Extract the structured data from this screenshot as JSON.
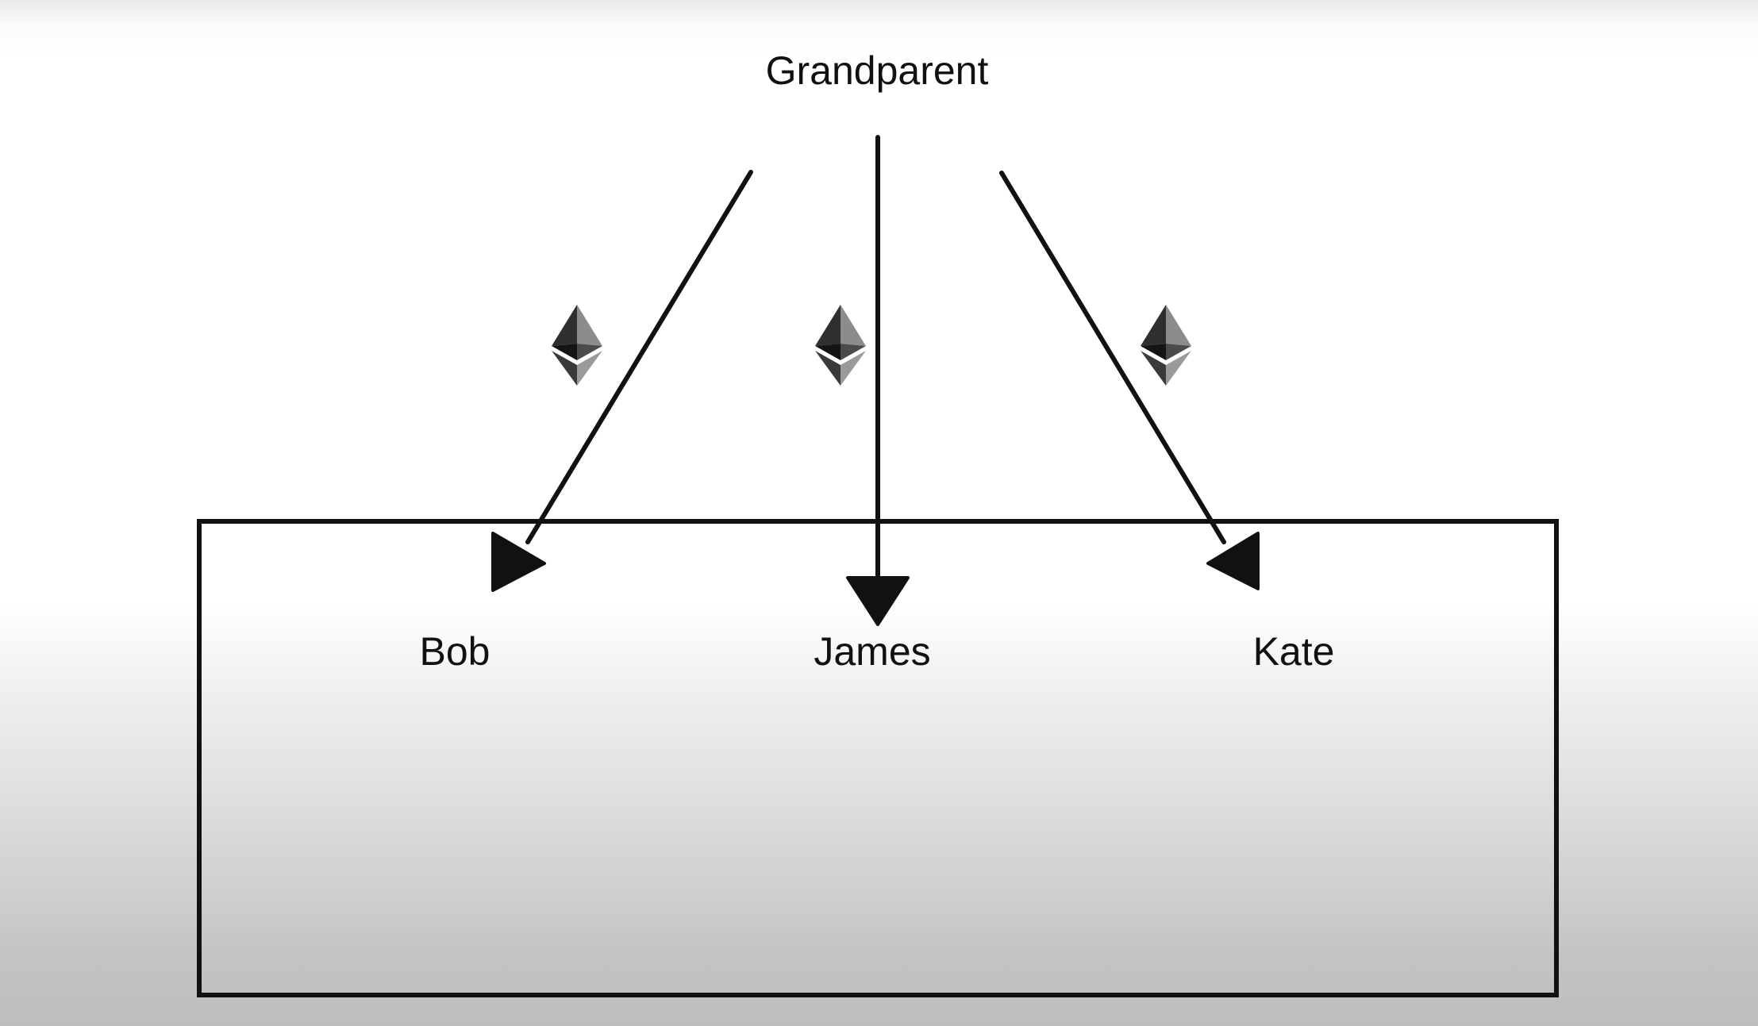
{
  "diagram": {
    "parent": {
      "label": "Grandparent"
    },
    "children": [
      {
        "label": "Bob"
      },
      {
        "label": "James"
      },
      {
        "label": "Kate"
      }
    ],
    "transfer_icon": "ethereum-icon",
    "colors": {
      "line": "#111111",
      "icon_dark": "#2a2a2a",
      "icon_mid": "#4a4a4a",
      "icon_light": "#8a8a8a"
    }
  }
}
